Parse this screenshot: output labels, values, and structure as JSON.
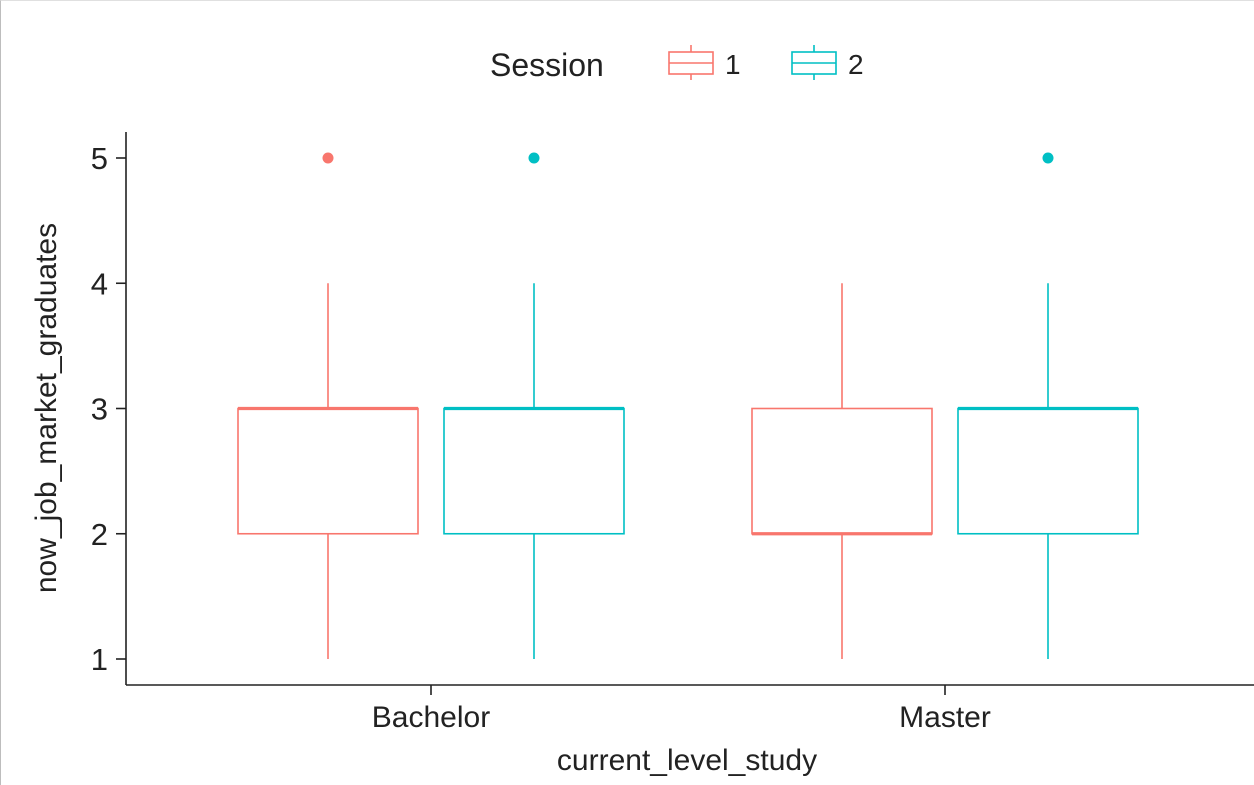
{
  "chart_data": {
    "type": "boxplot",
    "xlabel": "current_level_study",
    "ylabel": "now_job_market_graduates",
    "categories": [
      "Bachelor",
      "Master"
    ],
    "ylim": [
      0.8,
      5.2
    ],
    "yticks": [
      1,
      2,
      3,
      4,
      5
    ],
    "grid": false,
    "legend": {
      "title": "Session",
      "position": "top",
      "entries": [
        {
          "name": "1",
          "color": "#F8766D"
        },
        {
          "name": "2",
          "color": "#00BFC4"
        }
      ]
    },
    "series": [
      {
        "name": "1",
        "color": "#F8766D",
        "boxes": [
          {
            "category": "Bachelor",
            "whisker_low": 1,
            "q1": 2,
            "median": 3,
            "q3": 3,
            "whisker_high": 4,
            "outliers": [
              5
            ]
          },
          {
            "category": "Master",
            "whisker_low": 1,
            "q1": 2,
            "median": 2,
            "q3": 3,
            "whisker_high": 4,
            "outliers": []
          }
        ]
      },
      {
        "name": "2",
        "color": "#00BFC4",
        "boxes": [
          {
            "category": "Bachelor",
            "whisker_low": 1,
            "q1": 2,
            "median": 3,
            "q3": 3,
            "whisker_high": 4,
            "outliers": [
              5
            ]
          },
          {
            "category": "Master",
            "whisker_low": 1,
            "q1": 2,
            "median": 3,
            "q3": 3,
            "whisker_high": 4,
            "outliers": [
              5
            ]
          }
        ]
      }
    ]
  }
}
